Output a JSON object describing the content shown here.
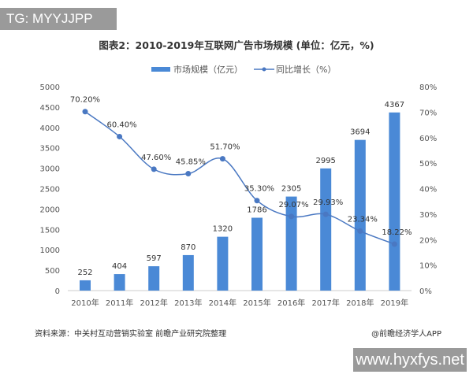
{
  "watermark_top": "TG: MYYJJPP",
  "watermark_bottom": "www.hyxfys.net",
  "source": "资料来源：中关村互动营销实验室  前瞻产业研究院整理",
  "credit": "@前瞻经济学人APP",
  "colors": {
    "bar": "#4a89d6",
    "line": "#4a78c2"
  },
  "chart_data": {
    "type": "bar+line",
    "title": "图表2：2010-2019年互联网广告市场规模 (单位：亿元，%)",
    "categories": [
      "2010年",
      "2011年",
      "2012年",
      "2013年",
      "2014年",
      "2015年",
      "2016年",
      "2017年",
      "2018年",
      "2019年"
    ],
    "series": [
      {
        "name": "市场规模（亿元）",
        "type": "bar",
        "axis": "left",
        "values": [
          252,
          404,
          597,
          870,
          1320,
          1786,
          2305,
          2995,
          3694,
          4367
        ],
        "labels": [
          "252",
          "404",
          "597",
          "870",
          "1320",
          "1786",
          "2305",
          "2995",
          "3694",
          "4367"
        ]
      },
      {
        "name": "同比增长（%）",
        "type": "line",
        "axis": "right",
        "values": [
          70.2,
          60.4,
          47.6,
          45.85,
          51.7,
          35.3,
          29.07,
          29.93,
          23.34,
          18.22
        ],
        "labels": [
          "70.20%",
          "60.40%",
          "47.60%",
          "45.85%",
          "51.70%",
          "35.30%",
          "29.07%",
          "29.93%",
          "23.34%",
          "18.22%"
        ]
      }
    ],
    "left_axis": {
      "range": [
        0,
        5000
      ],
      "ticks": [
        "0",
        "500",
        "1000",
        "1500",
        "2000",
        "2500",
        "3000",
        "3500",
        "4000",
        "4500",
        "5000"
      ]
    },
    "right_axis": {
      "range": [
        0,
        80
      ],
      "ticks": [
        "0%",
        "10%",
        "20%",
        "30%",
        "40%",
        "50%",
        "60%",
        "70%",
        "80%"
      ]
    },
    "grid": false,
    "legend": "top-center"
  }
}
